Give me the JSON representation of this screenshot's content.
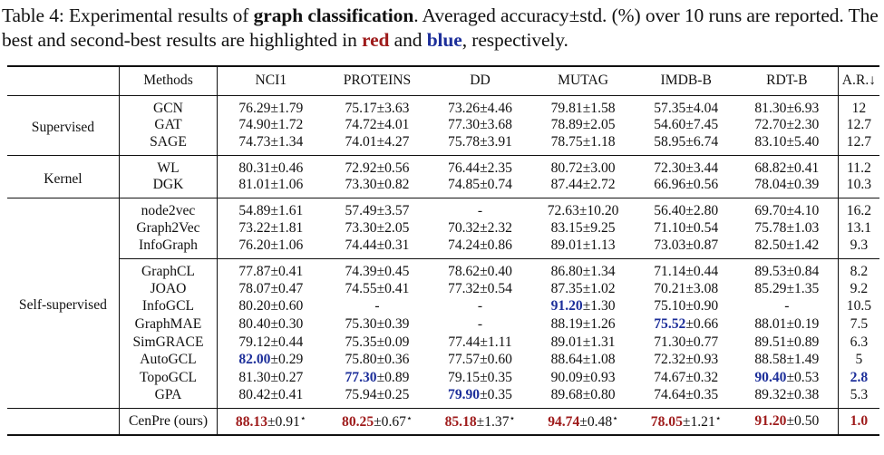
{
  "caption": {
    "label": "Table 4: Experimental results of ",
    "bold_term": "graph classification",
    "text_a": ". Averaged accuracy±std. (%) over 10 runs are reported. The best and second-best results are highlighted in ",
    "red_word": "red",
    "and_word": " and ",
    "blue_word": "blue",
    "text_end": ", respectively."
  },
  "columns": [
    "Methods",
    "NCI1",
    "PROTEINS",
    "DD",
    "MUTAG",
    "IMDB-B",
    "RDT-B",
    "A.R.↓"
  ],
  "groups": [
    {
      "name": "Supervised",
      "rows": [
        {
          "method": "GCN",
          "values": [
            "76.29±1.79",
            "75.17±3.63",
            "73.26±4.46",
            "79.81±1.58",
            "57.35±4.04",
            "81.30±6.93"
          ],
          "ar": "12"
        },
        {
          "method": "GAT",
          "values": [
            "74.90±1.72",
            "74.72±4.01",
            "77.30±3.68",
            "78.89±2.05",
            "54.60±7.45",
            "72.70±2.30"
          ],
          "ar": "12.7"
        },
        {
          "method": "SAGE",
          "values": [
            "74.73±1.34",
            "74.01±4.27",
            "75.78±3.91",
            "78.75±1.18",
            "58.95±6.74",
            "83.10±5.40"
          ],
          "ar": "12.7"
        }
      ]
    },
    {
      "name": "Kernel",
      "rows": [
        {
          "method": "WL",
          "values": [
            "80.31±0.46",
            "72.92±0.56",
            "76.44±2.35",
            "80.72±3.00",
            "72.30±3.44",
            "68.82±0.41"
          ],
          "ar": "11.2"
        },
        {
          "method": "DGK",
          "values": [
            "81.01±1.06",
            "73.30±0.82",
            "74.85±0.74",
            "87.44±2.72",
            "66.96±0.56",
            "78.04±0.39"
          ],
          "ar": "10.3"
        }
      ]
    },
    {
      "name": "Self-supervised",
      "rows": [
        {
          "method": "node2vec",
          "values": [
            "54.89±1.61",
            "57.49±3.57",
            "-",
            "72.63±10.20",
            "56.40±2.80",
            "69.70±4.10"
          ],
          "ar": "16.2"
        },
        {
          "method": "Graph2Vec",
          "values": [
            "73.22±1.81",
            "73.30±2.05",
            "70.32±2.32",
            "83.15±9.25",
            "71.10±0.54",
            "75.78±1.03"
          ],
          "ar": "13.1"
        },
        {
          "method": "InfoGraph",
          "values": [
            "76.20±1.06",
            "74.44±0.31",
            "74.24±0.86",
            "89.01±1.13",
            "73.03±0.87",
            "82.50±1.42"
          ],
          "ar": "9.3"
        },
        {
          "method": "GraphCL",
          "values": [
            "77.87±0.41",
            "74.39±0.45",
            "78.62±0.40",
            "86.80±1.34",
            "71.14±0.44",
            "89.53±0.84"
          ],
          "ar": "8.2"
        },
        {
          "method": "JOAO",
          "values": [
            "78.07±0.47",
            "74.55±0.41",
            "77.32±0.54",
            "87.35±1.02",
            "70.21±3.08",
            "85.29±1.35"
          ],
          "ar": "9.2"
        },
        {
          "method": "InfoGCL",
          "values": [
            "80.20±0.60",
            "-",
            "-",
            "91.20±1.30",
            "75.10±0.90",
            "-"
          ],
          "ar": "10.5"
        },
        {
          "method": "GraphMAE",
          "values": [
            "80.40±0.30",
            "75.30±0.39",
            "-",
            "88.19±1.26",
            "75.52±0.66",
            "88.01±0.19"
          ],
          "ar": "7.5"
        },
        {
          "method": "SimGRACE",
          "values": [
            "79.12±0.44",
            "75.35±0.09",
            "77.44±1.11",
            "89.01±1.31",
            "71.30±0.77",
            "89.51±0.89"
          ],
          "ar": "6.3"
        },
        {
          "method": "AutoGCL",
          "values": [
            "82.00±0.29",
            "75.80±0.36",
            "77.57±0.60",
            "88.64±1.08",
            "72.32±0.93",
            "88.58±1.49"
          ],
          "ar": "5"
        },
        {
          "method": "TopoGCL",
          "values": [
            "81.30±0.27",
            "77.30±0.89",
            "79.15±0.35",
            "90.09±0.93",
            "74.67±0.32",
            "90.40±0.53"
          ],
          "ar": "2.8"
        },
        {
          "method": "GPA",
          "values": [
            "80.42±0.41",
            "75.94±0.25",
            "79.90±0.35",
            "89.68±0.80",
            "74.64±0.35",
            "89.32±0.38"
          ],
          "ar": "5.3"
        }
      ]
    }
  ],
  "ours": {
    "method": "CenPre (ours)",
    "values": [
      {
        "mean": "88.13",
        "std": "±0.91",
        "star": "⋆"
      },
      {
        "mean": "80.25",
        "std": "±0.67",
        "star": "⋆"
      },
      {
        "mean": "85.18",
        "std": "±1.37",
        "star": "⋆"
      },
      {
        "mean": "94.74",
        "std": "±0.48",
        "star": "⋆"
      },
      {
        "mean": "78.05",
        "std": "±1.21",
        "star": "⋆"
      },
      {
        "mean": "91.20",
        "std": "±0.50",
        "star": ""
      }
    ],
    "ar": "1.0"
  },
  "highlights": {
    "blue": [
      [
        "AutoGCL",
        0
      ],
      [
        "TopoGCL",
        1
      ],
      [
        "GPA",
        2
      ],
      [
        "InfoGCL",
        3
      ],
      [
        "GraphMAE",
        4
      ],
      [
        "TopoGCL",
        5
      ]
    ],
    "blue_ar": [
      "TopoGCL"
    ],
    "colors": {
      "red": "#9e1b1b",
      "blue": "#1d2f9a"
    }
  }
}
